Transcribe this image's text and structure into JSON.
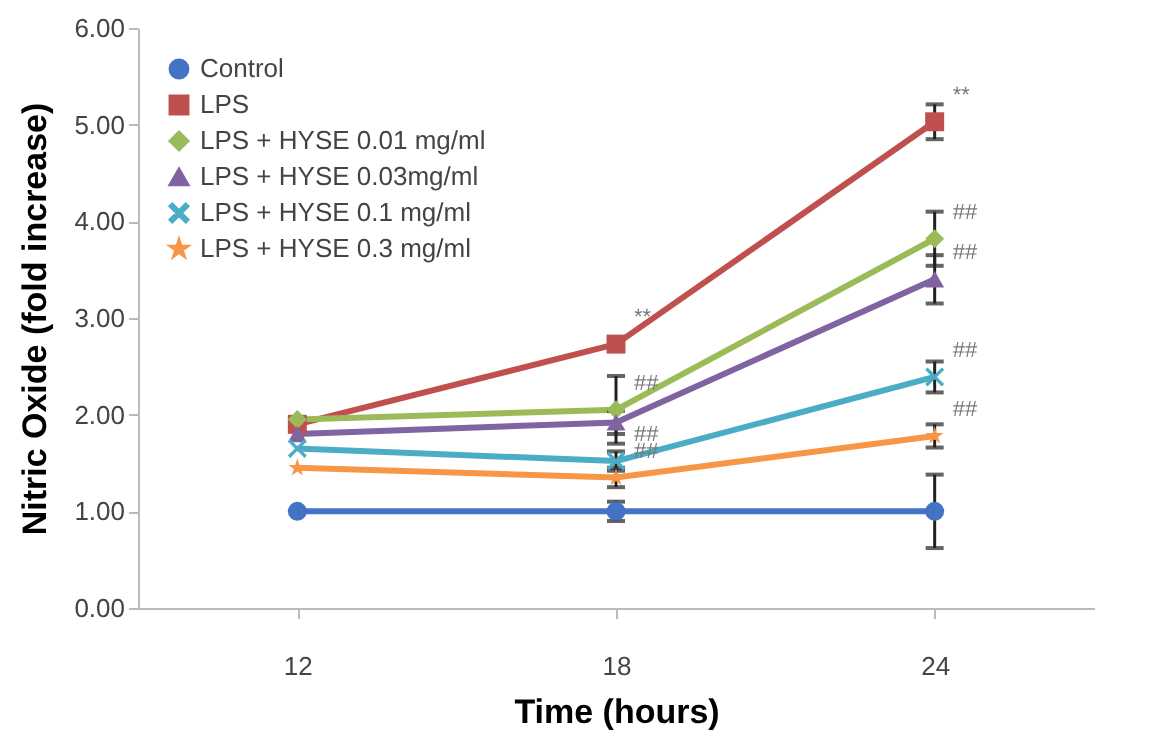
{
  "chart_data": {
    "type": "line",
    "xlabel": "Time  (hours)",
    "ylabel": "Nitric Oxide (fold increase)",
    "categories": [
      "12",
      "18",
      "24"
    ],
    "series": [
      {
        "name": "Control",
        "color": "#4472c4",
        "marker": "circle",
        "values": [
          1.0,
          1.0,
          1.0
        ],
        "errors": [
          null,
          0.1,
          0.38
        ]
      },
      {
        "name": "LPS",
        "color": "#c0504d",
        "marker": "square",
        "values": [
          1.9,
          2.73,
          5.03
        ],
        "errors": [
          null,
          null,
          0.18
        ]
      },
      {
        "name": "LPS  + HYSE 0.01 mg/ml",
        "color": "#9bbb59",
        "marker": "diamond",
        "values": [
          1.95,
          2.05,
          3.82
        ],
        "errors": [
          null,
          0.35,
          0.28
        ]
      },
      {
        "name": "LPS  + HYSE 0.03mg/ml",
        "color": "#8064a2",
        "marker": "triangle",
        "values": [
          1.8,
          1.92,
          3.4
        ],
        "errors": [
          null,
          0.12,
          0.25
        ]
      },
      {
        "name": "LPS  + HYSE 0.1 mg/ml",
        "color": "#4bacc6",
        "marker": "cross",
        "values": [
          1.65,
          1.52,
          2.39
        ],
        "errors": [
          null,
          0.1,
          0.16
        ]
      },
      {
        "name": "LPS  + HYSE 0.3 mg/ml",
        "color": "#f79646",
        "marker": "star",
        "values": [
          1.45,
          1.35,
          1.78
        ],
        "errors": [
          null,
          0.1,
          0.12
        ]
      }
    ],
    "annotations": [
      {
        "text": "**",
        "x": "18",
        "y": 2.73
      },
      {
        "text": "**",
        "x": "24",
        "y": 5.03
      },
      {
        "text": "##",
        "x": "18",
        "y": 2.05
      },
      {
        "text": "##",
        "x": "18",
        "y": 1.52
      },
      {
        "text": "##",
        "x": "18",
        "y": 1.35
      },
      {
        "text": "##",
        "x": "24",
        "y": 3.82
      },
      {
        "text": "##",
        "x": "24",
        "y": 3.4
      },
      {
        "text": "##",
        "x": "24",
        "y": 2.39
      },
      {
        "text": "##",
        "x": "24",
        "y": 1.78
      }
    ],
    "ylim": [
      0,
      6
    ],
    "yticks": [
      {
        "value": 0,
        "label": "0.00"
      },
      {
        "value": 1,
        "label": "1.00"
      },
      {
        "value": 2,
        "label": "2.00"
      },
      {
        "value": 3,
        "label": "3.00"
      },
      {
        "value": 4,
        "label": "4.00"
      },
      {
        "value": 5,
        "label": "5.00"
      },
      {
        "value": 6,
        "label": "6.00"
      }
    ],
    "legend": "top left",
    "grid": false,
    "line_style": "solid"
  }
}
